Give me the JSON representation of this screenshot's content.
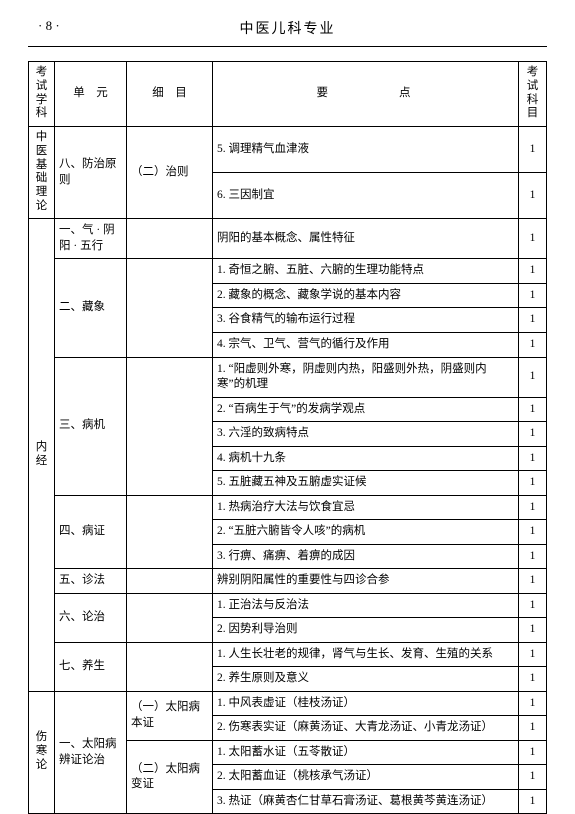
{
  "page": {
    "page_number": "· 8 ·",
    "header_title": "中医儿科专业"
  },
  "table": {
    "headers": {
      "subject": "考试学科",
      "unit": "单　元",
      "detail": "细　目",
      "points": "要　　点",
      "subject_num": "考试科目"
    },
    "rows": [
      {
        "subject": "中医基础理论",
        "unit": "八、防治原则",
        "detail": "（二）治则",
        "point": "5. 调理精气血津液",
        "num": "1"
      },
      {
        "point": "6. 三因制宜",
        "num": "1"
      },
      {
        "subject": "内经",
        "unit": "一、气 · 阴阳 · 五行",
        "detail": "",
        "point": "阴阳的基本概念、属性特征",
        "num": "1"
      },
      {
        "unit": "二、藏象",
        "detail": "",
        "point": "1. 奇恒之腑、五脏、六腑的生理功能特点",
        "num": "1"
      },
      {
        "point": "2. 藏象的概念、藏象学说的基本内容",
        "num": "1"
      },
      {
        "point": "3. 谷食精气的输布运行过程",
        "num": "1"
      },
      {
        "point": "4. 宗气、卫气、营气的循行及作用",
        "num": "1"
      },
      {
        "unit": "三、病机",
        "detail": "",
        "point": "1. “阳虚则外寒，阴虚则内热，阳盛则外热，阴盛则内寒”的机理",
        "num": "1"
      },
      {
        "point": "2. “百病生于气”的发病学观点",
        "num": "1"
      },
      {
        "point": "3. 六淫的致病特点",
        "num": "1"
      },
      {
        "point": "4. 病机十九条",
        "num": "1"
      },
      {
        "point": "5. 五脏藏五神及五腑虚实证候",
        "num": "1"
      },
      {
        "unit": "四、病证",
        "detail": "",
        "point": "1. 热病治疗大法与饮食宜忌",
        "num": "1"
      },
      {
        "point": "2. “五脏六腑皆令人咳”的病机",
        "num": "1"
      },
      {
        "point": "3. 行痹、痛痹、着痹的成因",
        "num": "1"
      },
      {
        "unit": "五、诊法",
        "detail": "",
        "point": "辨别阴阳属性的重要性与四诊合参",
        "num": "1"
      },
      {
        "unit": "六、论治",
        "detail": "",
        "point": "1. 正治法与反治法",
        "num": "1"
      },
      {
        "point": "2. 因势利导治则",
        "num": "1"
      },
      {
        "unit": "七、养生",
        "detail": "",
        "point": "1. 人生长壮老的规律，肾气与生长、发育、生殖的关系",
        "num": "1"
      },
      {
        "point": "2. 养生原则及意义",
        "num": "1"
      },
      {
        "subject": "伤寒论",
        "unit": "一、太阳病辨证论治",
        "detail": "（一）太阳病本证",
        "point": "1. 中风表虚证（桂枝汤证）",
        "num": "1"
      },
      {
        "point": "2. 伤寒表实证（麻黄汤证、大青龙汤证、小青龙汤证）",
        "num": "1"
      },
      {
        "detail": "（二）太阳病变证",
        "point": "1. 太阳蓄水证（五苓散证）",
        "num": "1"
      },
      {
        "point": "2. 太阳蓄血证（桃核承气汤证）",
        "num": "1"
      },
      {
        "point": "3. 热证（麻黄杏仁甘草石膏汤证、葛根黄芩黄连汤证）",
        "num": "1"
      }
    ]
  }
}
